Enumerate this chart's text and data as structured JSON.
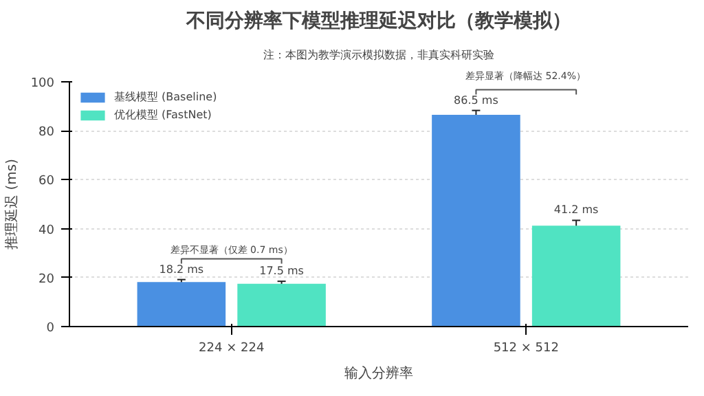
{
  "chart_data": {
    "type": "bar",
    "title": "不同分辨率下模型推理延迟对比（教学模拟）",
    "subtitle": "注：本图为教学演示模拟数据，非真实科研实验",
    "xlabel": "输入分辨率",
    "ylabel": "推理延迟 (ms)",
    "categories": [
      "224 × 224",
      "512 × 512"
    ],
    "series": [
      {
        "name": "基线模型 (Baseline)",
        "color": "#4a90e2",
        "values": [
          18.2,
          86.5
        ],
        "errors": [
          1.0,
          1.8
        ],
        "value_labels": [
          "18.2 ms",
          "86.5 ms"
        ]
      },
      {
        "name": "优化模型 (FastNet)",
        "color": "#50e3c2",
        "values": [
          17.5,
          41.2
        ],
        "errors": [
          1.0,
          2.2
        ],
        "value_labels": [
          "17.5 ms",
          "41.2 ms"
        ]
      }
    ],
    "annotations": [
      "差异不显著（仅差 0.7 ms）",
      "差异显著（降幅达 52.4%）"
    ],
    "ylim": [
      0,
      100
    ],
    "yticks": [
      0,
      20,
      40,
      60,
      80,
      100
    ],
    "grid": "y",
    "legend": "top left"
  }
}
